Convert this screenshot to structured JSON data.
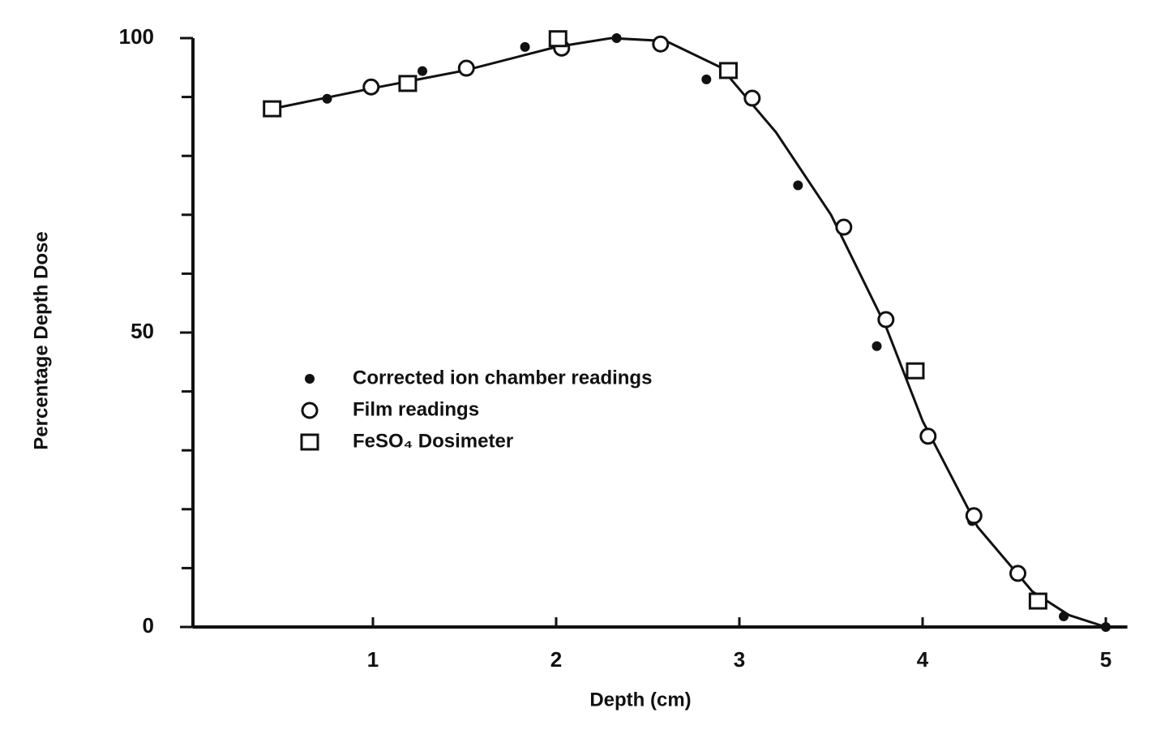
{
  "chart_data": {
    "type": "scatter",
    "x_label": "Depth (cm)",
    "y_label": "Percentage Depth Dose",
    "xlim": [
      0,
      5.1
    ],
    "xticks": [
      1,
      2,
      3,
      4,
      5
    ],
    "ylim": [
      0,
      100
    ],
    "yticks": [
      0,
      50,
      100
    ],
    "y_minor_ticks": [
      10,
      20,
      30,
      40,
      60,
      70,
      80,
      90
    ],
    "series": [
      {
        "name": "Corrected ion chamber readings",
        "marker": "filled-circle",
        "color": "#111111",
        "x": [
          0.75,
          1.27,
          1.83,
          2.33,
          2.82,
          3.32,
          3.75,
          4.27,
          4.77,
          5.0
        ],
        "values": [
          89.7,
          94.4,
          98.5,
          100,
          93,
          75,
          47.7,
          18,
          1.8,
          0
        ]
      },
      {
        "name": "Film readings",
        "marker": "open-circle",
        "color": "#111111",
        "x": [
          0.99,
          1.51,
          2.03,
          2.57,
          3.07,
          3.57,
          3.8,
          4.03,
          4.28,
          4.52
        ],
        "values": [
          91.7,
          94.9,
          98.3,
          99,
          89.8,
          67.9,
          52.2,
          32.4,
          18.9,
          9.1
        ]
      },
      {
        "name": "FeSO₄ Dosimeter",
        "marker": "open-square",
        "color": "#111111",
        "x": [
          0.45,
          1.19,
          2.01,
          2.94,
          3.96,
          4.63
        ],
        "values": [
          88,
          92.3,
          99.9,
          94.5,
          43.5,
          4.4
        ]
      }
    ],
    "fit_curve": {
      "color": "#111111",
      "x": [
        0.45,
        1.0,
        1.5,
        2.0,
        2.3,
        2.6,
        2.9,
        3.2,
        3.5,
        3.8,
        4.0,
        4.3,
        4.6,
        4.8,
        5.0
      ],
      "values": [
        88,
        91.5,
        94.5,
        98.5,
        100,
        99.5,
        95,
        84,
        70,
        51,
        35,
        17,
        6,
        2,
        0
      ]
    }
  }
}
